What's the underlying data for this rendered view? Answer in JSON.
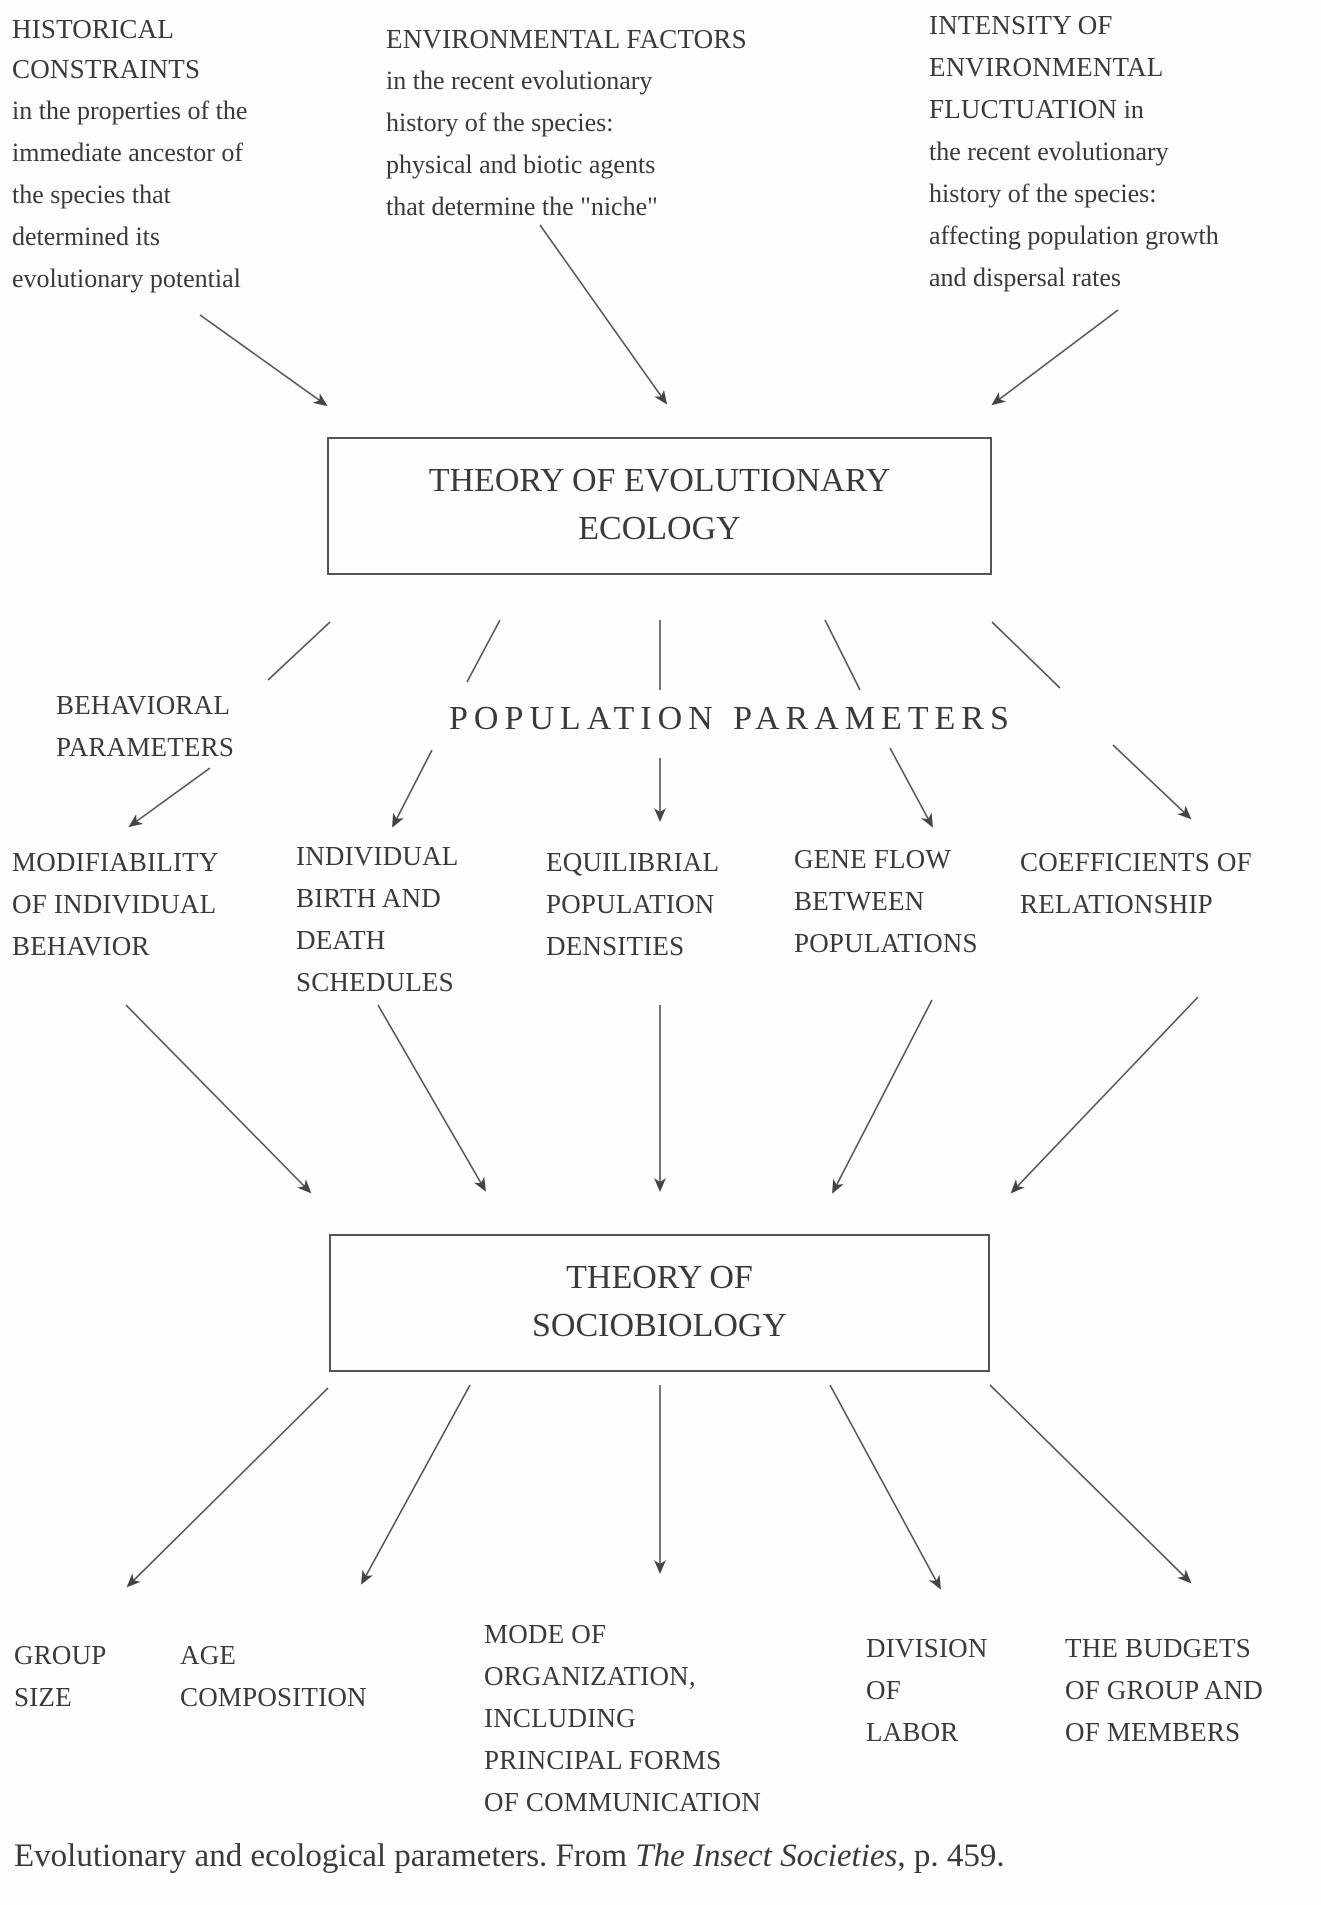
{
  "top": {
    "historical": {
      "title": [
        "HISTORICAL",
        "CONSTRAINTS"
      ],
      "body": [
        "in the properties of the",
        "immediate ancestor of",
        "the species that",
        "determined its",
        "evolutionary potential"
      ]
    },
    "environmental": {
      "title": [
        "ENVIRONMENTAL FACTORS"
      ],
      "body": [
        "in the recent evolutionary",
        "history of the species:",
        "physical and biotic agents",
        "that determine the \"niche\""
      ]
    },
    "intensity": {
      "title": [
        "INTENSITY OF",
        "ENVIRONMENTAL",
        "FLUCTUATION"
      ],
      "title_suffix": " in",
      "body": [
        "the recent evolutionary",
        "history of the species:",
        "affecting population growth",
        "and dispersal rates"
      ]
    }
  },
  "box_evolutionary": [
    "THEORY OF EVOLUTIONARY",
    "ECOLOGY"
  ],
  "behavioral_label": [
    "BEHAVIORAL",
    "PARAMETERS"
  ],
  "population_label": "POPULATION PARAMETERS",
  "parameters": {
    "modifiability": [
      "MODIFIABILITY",
      "OF INDIVIDUAL",
      "BEHAVIOR"
    ],
    "birth_death": [
      "INDIVIDUAL",
      "BIRTH AND",
      "DEATH",
      "SCHEDULES"
    ],
    "equilibrial": [
      "EQUILIBRIAL",
      "POPULATION",
      "DENSITIES"
    ],
    "gene_flow": [
      "GENE FLOW",
      "BETWEEN",
      "POPULATIONS"
    ],
    "coefficients": [
      "COEFFICIENTS OF",
      "RELATIONSHIP"
    ]
  },
  "box_sociobiology": [
    "THEORY OF",
    "SOCIOBIOLOGY"
  ],
  "outcomes": {
    "group_size": [
      "GROUP",
      "SIZE"
    ],
    "age": [
      "AGE",
      "COMPOSITION"
    ],
    "mode": [
      "MODE OF",
      "ORGANIZATION,",
      "INCLUDING",
      "PRINCIPAL FORMS",
      "OF COMMUNICATION"
    ],
    "division": [
      "DIVISION",
      "OF",
      "LABOR"
    ],
    "budgets": [
      "THE BUDGETS",
      "OF GROUP AND",
      "OF MEMBERS"
    ]
  },
  "caption": {
    "prefix": "Evolutionary and ecological parameters. From ",
    "book": "The Insect Societies",
    "suffix": ", p. 459."
  },
  "colors": {
    "ink": "#3a3a3a",
    "line": "#555555",
    "paper": "#fdfdfb"
  }
}
